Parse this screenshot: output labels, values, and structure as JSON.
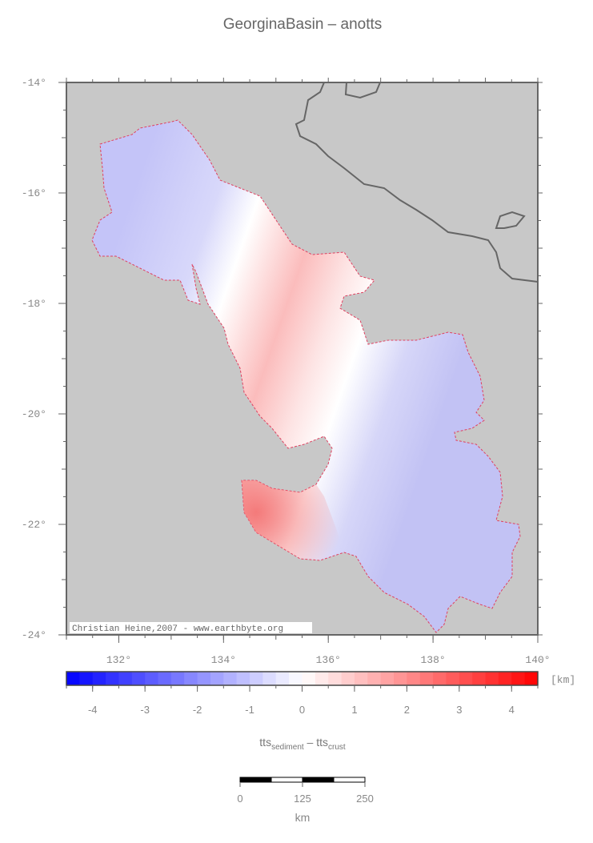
{
  "title": "GeorginaBasin – anotts",
  "map": {
    "xlim": [
      131,
      140
    ],
    "ylim": [
      -24,
      -14
    ],
    "xticks": [
      {
        "value": 132,
        "label": "132°"
      },
      {
        "value": 134,
        "label": "134°"
      },
      {
        "value": 136,
        "label": "136°"
      },
      {
        "value": 138,
        "label": "138°"
      },
      {
        "value": 140,
        "label": "140°"
      }
    ],
    "yticks": [
      {
        "value": -14,
        "label": "-14°"
      },
      {
        "value": -16,
        "label": "-16°"
      },
      {
        "value": -18,
        "label": "-18°"
      },
      {
        "value": -20,
        "label": "-20°"
      },
      {
        "value": -22,
        "label": "-22°"
      },
      {
        "value": -24,
        "label": "-24°"
      }
    ],
    "background": "#c8c8c8"
  },
  "credit": "Christian Heine,2007 - www.earthbyte.org",
  "colorbar": {
    "clim": [
      -4.5,
      4.5
    ],
    "step": 0.25,
    "colors": [
      "#0000ff",
      "#ffffff",
      "#ff0000"
    ],
    "ticks": [
      -4,
      -3,
      -2,
      -1,
      0,
      1,
      2,
      3,
      4
    ],
    "unit": "[km]",
    "label": [
      "tts",
      "sediment",
      " – tts",
      "crust"
    ]
  },
  "scale_bar": {
    "ticks": [
      0,
      125,
      250
    ],
    "unit": "km"
  }
}
